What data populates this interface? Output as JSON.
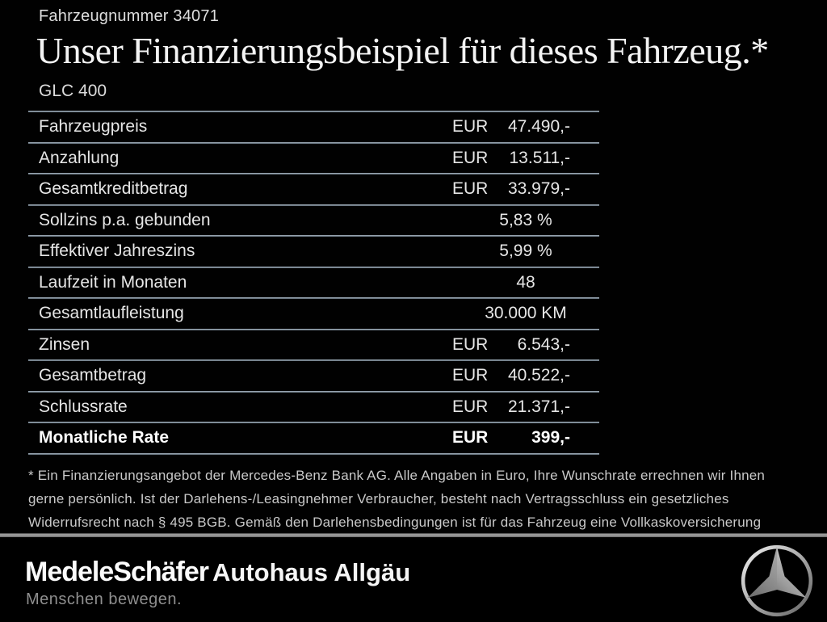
{
  "header": {
    "vehicle_number": "Fahrzeugnummer 34071",
    "title": "Unser Finanzierungsbeispiel für dieses Fahrzeug.*",
    "model": "GLC 400"
  },
  "table": {
    "rows": [
      {
        "label": "Fahrzeugpreis",
        "currency": "EUR",
        "value": "47.490,-",
        "emphasis": false
      },
      {
        "label": "Anzahlung",
        "currency": "EUR",
        "value": "13.511,-",
        "emphasis": false
      },
      {
        "label": "Gesamtkreditbetrag",
        "currency": "EUR",
        "value": "33.979,-",
        "emphasis": false
      },
      {
        "label": "Sollzins p.a. gebunden",
        "currency": "",
        "value": "5,83 %",
        "emphasis": false
      },
      {
        "label": "Effektiver Jahreszins",
        "currency": "",
        "value": "5,99 %",
        "emphasis": false
      },
      {
        "label": "Laufzeit in Monaten",
        "currency": "",
        "value": "48",
        "emphasis": false
      },
      {
        "label": "Gesamtlaufleistung",
        "currency": "",
        "value": "30.000 KM",
        "emphasis": false
      },
      {
        "label": "Zinsen",
        "currency": "EUR",
        "value": "6.543,-",
        "emphasis": false
      },
      {
        "label": "Gesamtbetrag",
        "currency": "EUR",
        "value": "40.522,-",
        "emphasis": false
      },
      {
        "label": "Schlussrate",
        "currency": "EUR",
        "value": "21.371,-",
        "emphasis": false
      },
      {
        "label": "Monatliche Rate",
        "currency": "EUR",
        "value": "399,-",
        "emphasis": true
      }
    ]
  },
  "footnote": "* Ein Finanzierungsangebot der Mercedes-Benz Bank AG. Alle Angaben in Euro, Ihre Wunschrate errechnen wir Ihnen gerne persönlich. Ist der Darlehens-/Leasingnehmer Verbraucher, besteht nach Vertragsschluss ein gesetzliches Widerrufsrecht nach § 495 BGB. Gemäß den Darlehensbedingungen ist für das Fahrzeug eine Vollkaskoversicherung abzuschließen.",
  "footer": {
    "dealer_logo_text": "MedeleSchäfer",
    "dealer_tagline": "Menschen bewegen.",
    "dealer_secondary_text": "Autohaus Allgäu",
    "brand_icon": "mercedes-star-icon"
  },
  "colors": {
    "background": "#000000",
    "text": "#e8e8e8",
    "divider": "#8094a3",
    "footnote_text": "#c9c9c9",
    "tagline_text": "#8f8f8f"
  }
}
